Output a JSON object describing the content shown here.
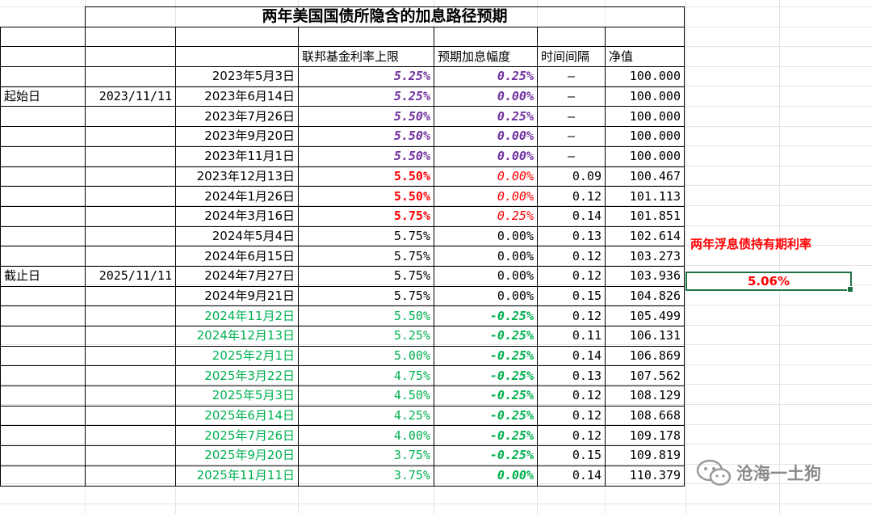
{
  "title": "两年美国国债所隐含的加息路径预期",
  "headers": {
    "fed_cap": "联邦基金利率上限",
    "expected_hike": "预期加息幅度",
    "interval": "时间间隔",
    "nav": "净值"
  },
  "labels": {
    "start": "起始日",
    "start_date": "2023/11/11",
    "end": "截止日",
    "end_date": "2025/11/11"
  },
  "rows": [
    {
      "date": "2023年5月3日",
      "rate": "5.25%",
      "hike": "0.25%",
      "interval": "–",
      "nav": "100.000",
      "style": "past"
    },
    {
      "date": "2023年6月14日",
      "rate": "5.25%",
      "hike": "0.00%",
      "interval": "–",
      "nav": "100.000",
      "style": "past"
    },
    {
      "date": "2023年7月26日",
      "rate": "5.50%",
      "hike": "0.25%",
      "interval": "–",
      "nav": "100.000",
      "style": "past"
    },
    {
      "date": "2023年9月20日",
      "rate": "5.50%",
      "hike": "0.00%",
      "interval": "–",
      "nav": "100.000",
      "style": "past"
    },
    {
      "date": "2023年11月1日",
      "rate": "5.50%",
      "hike": "0.00%",
      "interval": "–",
      "nav": "100.000",
      "style": "past"
    },
    {
      "date": "2023年12月13日",
      "rate": "5.50%",
      "hike": "0.00%",
      "interval": "0.09",
      "nav": "100.467",
      "style": "red"
    },
    {
      "date": "2024年1月26日",
      "rate": "5.50%",
      "hike": "0.00%",
      "interval": "0.12",
      "nav": "101.113",
      "style": "red"
    },
    {
      "date": "2024年3月16日",
      "rate": "5.75%",
      "hike": "0.25%",
      "interval": "0.14",
      "nav": "101.851",
      "style": "red"
    },
    {
      "date": "2024年5月4日",
      "rate": "5.75%",
      "hike": "0.00%",
      "interval": "0.13",
      "nav": "102.614",
      "style": "plain"
    },
    {
      "date": "2024年6月15日",
      "rate": "5.75%",
      "hike": "0.00%",
      "interval": "0.12",
      "nav": "103.273",
      "style": "plain"
    },
    {
      "date": "2024年7月27日",
      "rate": "5.75%",
      "hike": "0.00%",
      "interval": "0.12",
      "nav": "103.936",
      "style": "plain"
    },
    {
      "date": "2024年9月21日",
      "rate": "5.75%",
      "hike": "0.00%",
      "interval": "0.15",
      "nav": "104.826",
      "style": "plain"
    },
    {
      "date": "2024年11月2日",
      "rate": "5.50%",
      "hike": "-0.25%",
      "interval": "0.12",
      "nav": "105.499",
      "style": "green"
    },
    {
      "date": "2024年12月13日",
      "rate": "5.25%",
      "hike": "-0.25%",
      "interval": "0.11",
      "nav": "106.131",
      "style": "green"
    },
    {
      "date": "2025年2月1日",
      "rate": "5.00%",
      "hike": "-0.25%",
      "interval": "0.14",
      "nav": "106.869",
      "style": "green"
    },
    {
      "date": "2025年3月22日",
      "rate": "4.75%",
      "hike": "-0.25%",
      "interval": "0.13",
      "nav": "107.562",
      "style": "green"
    },
    {
      "date": "2025年5月3日",
      "rate": "4.50%",
      "hike": "-0.25%",
      "interval": "0.12",
      "nav": "108.129",
      "style": "green"
    },
    {
      "date": "2025年6月14日",
      "rate": "4.25%",
      "hike": "-0.25%",
      "interval": "0.12",
      "nav": "108.668",
      "style": "green"
    },
    {
      "date": "2025年7月26日",
      "rate": "4.00%",
      "hike": "-0.25%",
      "interval": "0.12",
      "nav": "109.178",
      "style": "green"
    },
    {
      "date": "2025年9月20日",
      "rate": "3.75%",
      "hike": "-0.25%",
      "interval": "0.15",
      "nav": "109.819",
      "style": "green"
    },
    {
      "date": "2025年11月11日",
      "rate": "3.75%",
      "hike": "0.00%",
      "interval": "0.14",
      "nav": "110.379",
      "style": "green"
    }
  ],
  "side": {
    "label": "两年浮息债持有期利率",
    "value": "5.06%"
  },
  "watermark": "沧海一土狗",
  "colors": {
    "purple": "#7030a0",
    "red": "#ff0000",
    "green": "#00b050",
    "selection": "#1e7145"
  }
}
